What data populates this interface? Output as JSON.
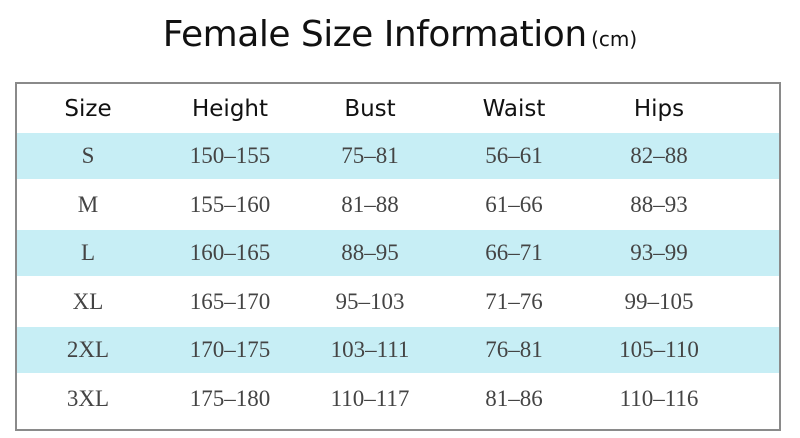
{
  "header": {
    "title": "Female Size Information",
    "unit": "(cm)"
  },
  "table": {
    "columns": [
      "Size",
      "Height",
      "Bust",
      "Waist",
      "Hips"
    ],
    "rows": [
      [
        "S",
        "150–155",
        "75–81",
        "56–61",
        "82–88"
      ],
      [
        "M",
        "155–160",
        "81–88",
        "61–66",
        "88–93"
      ],
      [
        "L",
        "160–165",
        "88–95",
        "66–71",
        "93–99"
      ],
      [
        "XL",
        "165–170",
        "95–103",
        "71–76",
        "99–105"
      ],
      [
        "2XL",
        "170–175",
        "103–111",
        "76–81",
        "105–110"
      ],
      [
        "3XL",
        "175–180",
        "110–117",
        "81–86",
        "110–116"
      ]
    ]
  }
}
